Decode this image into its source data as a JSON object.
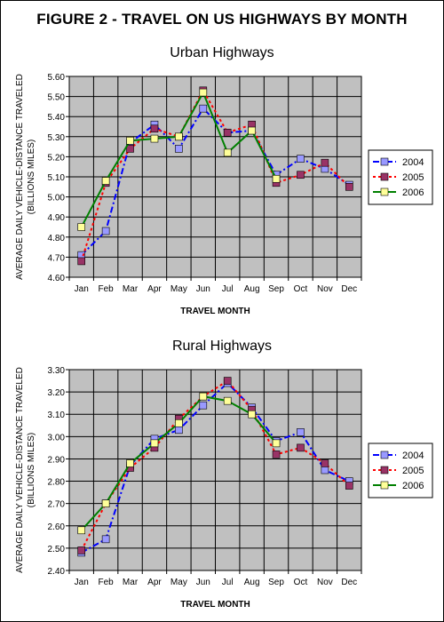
{
  "figure": {
    "title": "FIGURE 2 - TRAVEL ON US HIGHWAYS BY MONTH"
  },
  "legend": {
    "names": [
      "2004",
      "2005",
      "2006"
    ]
  },
  "colors": {
    "2004": "#0000ff",
    "2005": "#ff0000",
    "2006": "#008000",
    "marker_2004": "#9999ff",
    "marker_2005": "#993366",
    "marker_2006": "#ffff99",
    "plot_bg": "#c0c0c0"
  },
  "chart_data": [
    {
      "type": "line",
      "title": "Urban Highways",
      "xlabel": "TRAVEL MONTH",
      "ylabel": "AVERAGE DAILY VEHICLE-DISTANCE TRAVELED",
      "ylabel2": "(BILLIONS MILES)",
      "categories": [
        "Jan",
        "Feb",
        "Mar",
        "Apr",
        "May",
        "Jun",
        "Jul",
        "Aug",
        "Sep",
        "Oct",
        "Nov",
        "Dec"
      ],
      "ylim": [
        4.6,
        5.6
      ],
      "ytick_labels": [
        "4.60",
        "4.70",
        "4.80",
        "4.90",
        "5.00",
        "5.10",
        "5.20",
        "5.30",
        "5.40",
        "5.50",
        "5.60"
      ],
      "grid": true,
      "legend_position": "right",
      "series": [
        {
          "name": "2004",
          "values": [
            4.71,
            4.83,
            5.27,
            5.36,
            5.24,
            5.44,
            5.32,
            5.33,
            5.11,
            5.19,
            5.14,
            5.06
          ]
        },
        {
          "name": "2005",
          "values": [
            4.68,
            5.07,
            5.24,
            5.34,
            5.3,
            5.53,
            5.32,
            5.36,
            5.07,
            5.11,
            5.17,
            5.05
          ]
        },
        {
          "name": "2006",
          "values": [
            4.85,
            5.08,
            5.28,
            5.29,
            5.3,
            5.52,
            5.22,
            5.33,
            5.09,
            null,
            null,
            null
          ]
        }
      ]
    },
    {
      "type": "line",
      "title": "Rural Highways",
      "xlabel": "TRAVEL MONTH",
      "ylabel": "AVERAGE DAILY VEHICLE-DISTANCE TRAVELED",
      "ylabel2": "(BILLIONS MILES)",
      "categories": [
        "Jan",
        "Feb",
        "Mar",
        "Apr",
        "May",
        "Jun",
        "Jul",
        "Aug",
        "Sep",
        "Oct",
        "Nov",
        "Dec"
      ],
      "ylim": [
        2.4,
        3.3
      ],
      "ytick_labels": [
        "2.40",
        "2.50",
        "2.60",
        "2.70",
        "2.80",
        "2.90",
        "3.00",
        "3.10",
        "3.20",
        "3.30"
      ],
      "grid": true,
      "legend_position": "right",
      "series": [
        {
          "name": "2004",
          "values": [
            2.48,
            2.54,
            2.87,
            2.99,
            3.03,
            3.14,
            3.24,
            3.13,
            2.98,
            3.02,
            2.85,
            2.8
          ]
        },
        {
          "name": "2005",
          "values": [
            2.49,
            2.7,
            2.86,
            2.95,
            3.08,
            3.18,
            3.25,
            3.12,
            2.92,
            2.95,
            2.88,
            2.78
          ]
        },
        {
          "name": "2006",
          "values": [
            2.58,
            2.7,
            2.88,
            2.97,
            3.06,
            3.18,
            3.16,
            3.1,
            2.97,
            null,
            null,
            null
          ]
        }
      ]
    }
  ]
}
